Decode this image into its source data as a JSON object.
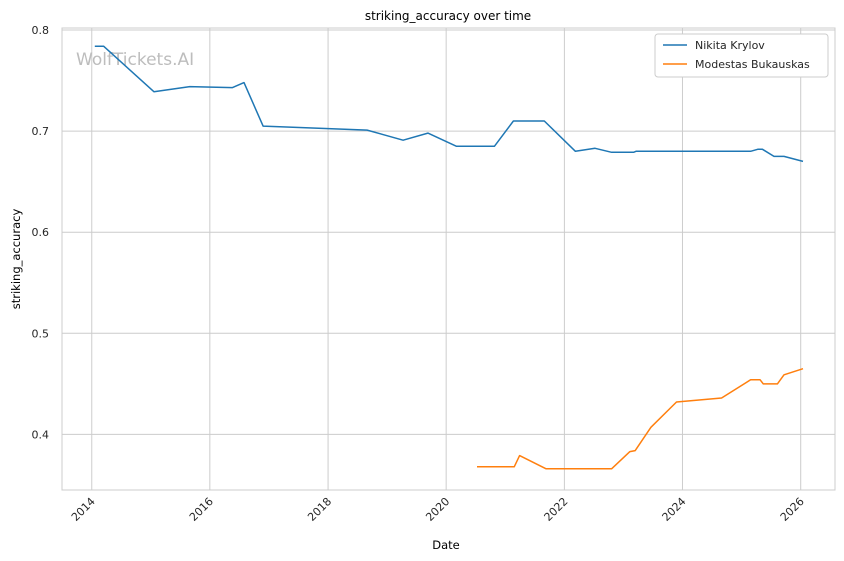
{
  "chart_data": {
    "type": "line",
    "title": "striking_accuracy over time",
    "xlabel": "Date",
    "ylabel": "striking_accuracy",
    "watermark": "WolfTickets.AI",
    "x_ticks": [
      "2014",
      "2016",
      "2018",
      "2020",
      "2022",
      "2024",
      "2026"
    ],
    "y_ticks": [
      "0.4",
      "0.5",
      "0.6",
      "0.7",
      "0.8"
    ],
    "xlim": [
      "2013-07-01",
      "2026-08-01"
    ],
    "ylim": [
      0.345,
      0.802
    ],
    "grid": true,
    "legend_position": "top-right",
    "series": [
      {
        "name": "Nikita Krylov",
        "color": "#1f77b4",
        "points": [
          [
            "2014-01-20",
            0.784
          ],
          [
            "2014-03-15",
            0.784
          ],
          [
            "2015-01-20",
            0.739
          ],
          [
            "2015-08-30",
            0.744
          ],
          [
            "2016-05-20",
            0.743
          ],
          [
            "2016-07-30",
            0.748
          ],
          [
            "2016-11-25",
            0.705
          ],
          [
            "2018-08-30",
            0.701
          ],
          [
            "2019-04-10",
            0.691
          ],
          [
            "2019-09-10",
            0.698
          ],
          [
            "2020-03-05",
            0.685
          ],
          [
            "2020-10-25",
            0.685
          ],
          [
            "2021-02-20",
            0.71
          ],
          [
            "2021-08-30",
            0.71
          ],
          [
            "2022-03-10",
            0.68
          ],
          [
            "2022-07-10",
            0.683
          ],
          [
            "2022-10-20",
            0.679
          ],
          [
            "2023-03-05",
            0.679
          ],
          [
            "2023-03-20",
            0.68
          ],
          [
            "2025-02-25",
            0.68
          ],
          [
            "2025-04-10",
            0.682
          ],
          [
            "2025-05-10",
            0.682
          ],
          [
            "2025-07-20",
            0.675
          ],
          [
            "2025-09-20",
            0.675
          ],
          [
            "2026-01-15",
            0.67
          ]
        ]
      },
      {
        "name": "Modestas Bukauskas",
        "color": "#ff7f0e",
        "points": [
          [
            "2020-07-10",
            0.368
          ],
          [
            "2021-02-25",
            0.368
          ],
          [
            "2021-03-30",
            0.379
          ],
          [
            "2021-09-10",
            0.366
          ],
          [
            "2022-10-20",
            0.366
          ],
          [
            "2023-02-10",
            0.383
          ],
          [
            "2023-03-15",
            0.384
          ],
          [
            "2023-06-20",
            0.407
          ],
          [
            "2023-11-25",
            0.432
          ],
          [
            "2024-08-30",
            0.436
          ],
          [
            "2025-02-25",
            0.454
          ],
          [
            "2025-04-25",
            0.454
          ],
          [
            "2025-05-15",
            0.45
          ],
          [
            "2025-08-10",
            0.45
          ],
          [
            "2025-09-20",
            0.459
          ],
          [
            "2026-01-15",
            0.465
          ]
        ]
      }
    ]
  }
}
